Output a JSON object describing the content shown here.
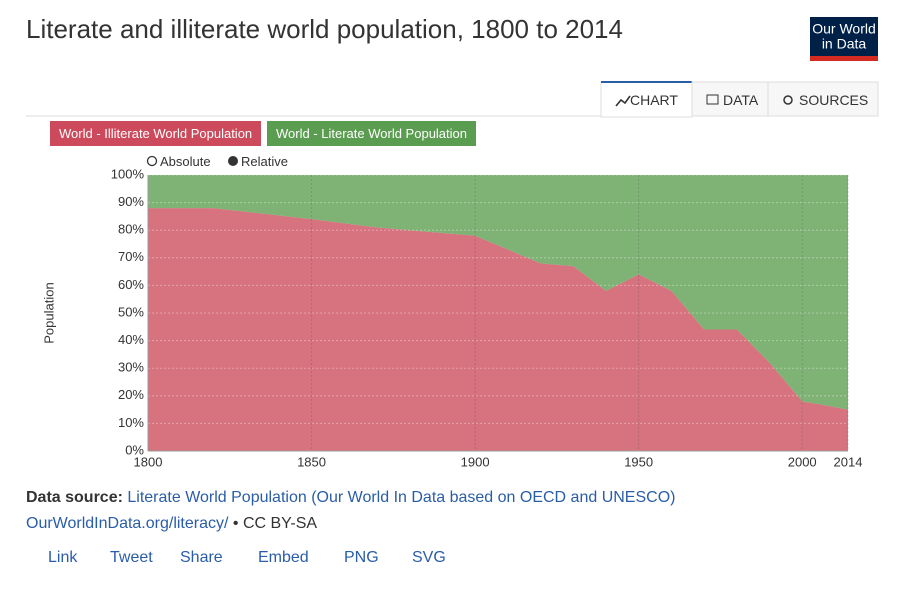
{
  "header": {
    "title": "Literate and illiterate world population, 1800 to 2014",
    "logo": [
      "Our World",
      "in Data"
    ]
  },
  "tabs": [
    "CHART",
    "DATA",
    "SOURCES"
  ],
  "modes": [
    "Absolute",
    "Relative"
  ],
  "chart_data": {
    "type": "area",
    "stacked": true,
    "ylabel": "Population",
    "x": [
      1800,
      1820,
      1850,
      1870,
      1880,
      1890,
      1900,
      1910,
      1920,
      1930,
      1940,
      1950,
      1960,
      1970,
      1980,
      1990,
      2000,
      2005,
      2014
    ],
    "series": [
      {
        "name": "World - Illiterate World Population",
        "color": "#cc4a5b",
        "values": [
          88,
          88,
          84,
          81,
          80,
          79,
          78,
          73,
          68,
          67,
          58,
          64,
          58,
          44,
          44,
          32,
          18,
          17,
          15
        ]
      },
      {
        "name": "World - Literate World Population",
        "color": "#5b9d50",
        "values": [
          12,
          12,
          16,
          19,
          20,
          21,
          22,
          27,
          32,
          33,
          42,
          36,
          42,
          56,
          56,
          68,
          82,
          83,
          85
        ]
      }
    ],
    "xlim": [
      1800,
      2014
    ],
    "xticks": [
      1800,
      1850,
      1900,
      1950,
      2000,
      2014
    ],
    "ylim": [
      0,
      100
    ],
    "yticks": [
      {
        "value": 0,
        "label": "0%"
      },
      {
        "value": 10,
        "label": "10%"
      },
      {
        "value": 20,
        "label": "20%"
      },
      {
        "value": 30,
        "label": "30%"
      },
      {
        "value": 40,
        "label": "40%"
      },
      {
        "value": 50,
        "label": "50%"
      },
      {
        "value": 60,
        "label": "60%"
      },
      {
        "value": 70,
        "label": "70%"
      },
      {
        "value": 80,
        "label": "80%"
      },
      {
        "value": 90,
        "label": "90%"
      },
      {
        "value": 100,
        "label": "100%"
      }
    ],
    "grid": true
  },
  "footer": {
    "source_label": "Data source:",
    "source": "Literate World Population (Our World In Data based on OECD and UNESCO)",
    "url": "OurWorldInData.org/literacy/",
    "license": "• CC BY-SA",
    "actions": [
      "Link",
      "Tweet",
      "Share",
      "Embed",
      "PNG",
      "SVG"
    ]
  }
}
